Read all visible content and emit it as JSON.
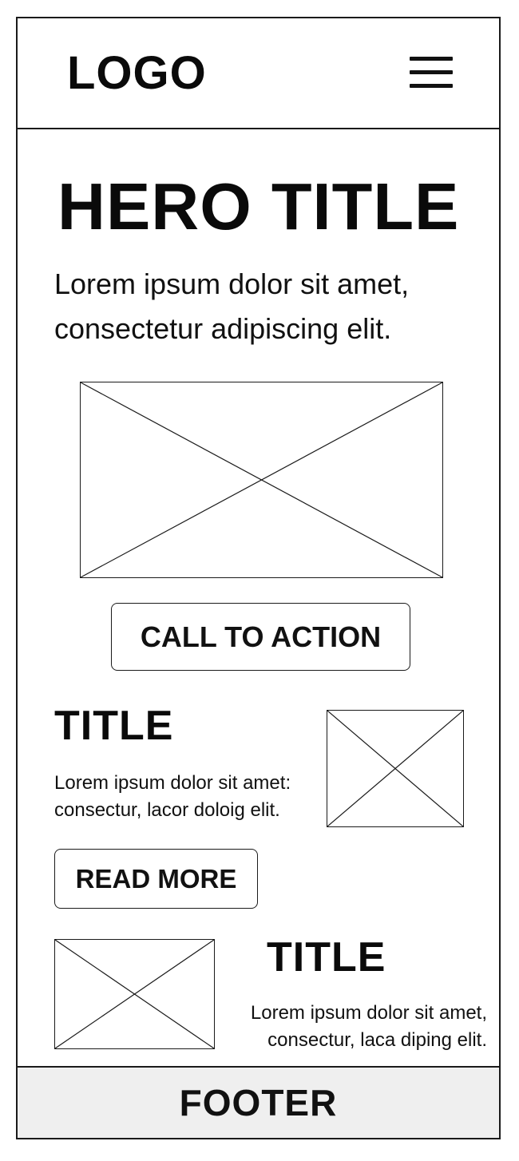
{
  "header": {
    "logo_text": "LOGO",
    "menu_icon": "hamburger-menu-icon"
  },
  "hero": {
    "title": "HERO TITLE",
    "text": "Lorem ipsum dolor sit amet, consectetur adipiscing elit.",
    "image_icon": "image-placeholder-icon",
    "cta_label": "CALL TO ACTION"
  },
  "section1": {
    "title": "TITLE",
    "text": "Lorem ipsum dolor sit amet: consectur, lacor doloig elit.",
    "image_icon": "image-placeholder-icon",
    "button_label": "READ MORE"
  },
  "section2": {
    "title": "TITLE",
    "text": "Lorem ipsum dolor sit amet, consectur, laca diping elit.",
    "image_icon": "image-placeholder-icon"
  },
  "footer": {
    "label": "FOOTER",
    "background_color": "#efefef"
  }
}
